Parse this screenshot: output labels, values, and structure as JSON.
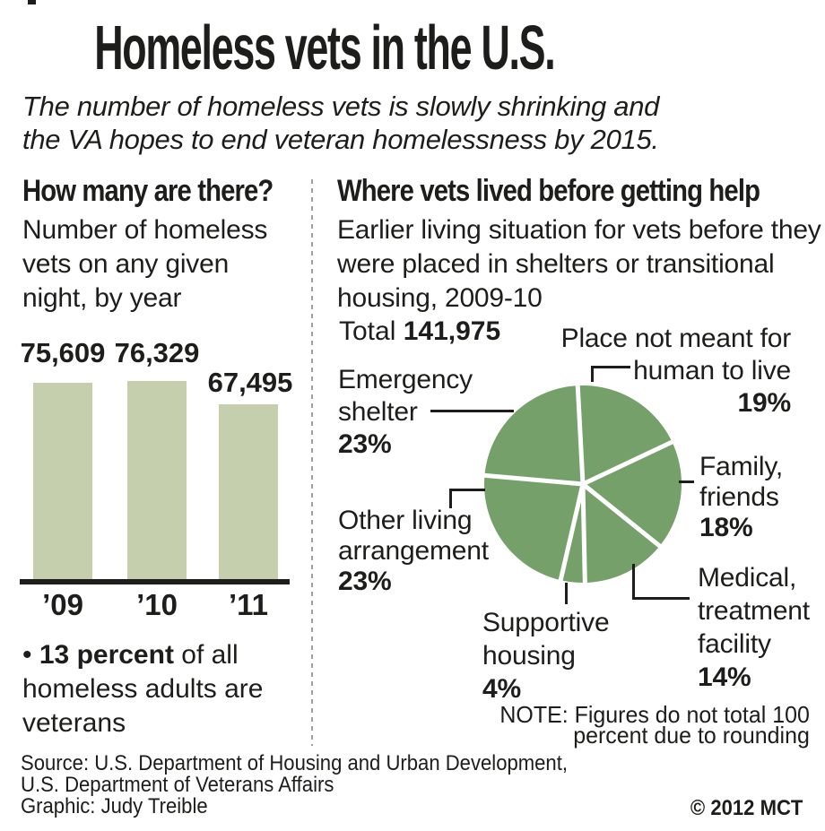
{
  "header": {
    "title": "Homeless vets in the U.S.",
    "subtitle": "The number of homeless vets is slowly shrinking and the VA hopes to end veteran homelessness by 2015."
  },
  "left_section": {
    "heading": "How many are there?",
    "description": "Number of homeless vets on any given night, by year",
    "footnote_bullet": "•",
    "footnote_bold": "13 percent",
    "footnote_rest": " of all homeless adults are veterans"
  },
  "right_section": {
    "heading": "Where vets lived before getting help",
    "description": "Earlier living situation for vets before they were placed in shelters or transitional housing, 2009-10",
    "total_label": "Total",
    "total_value": "141,975",
    "note_line1": "NOTE: Figures do not total 100",
    "note_line2": "percent due to rounding"
  },
  "footer": {
    "source_line1": "Source: U.S. Department of Housing and Urban Development,",
    "source_line2": "U.S. Department of Veterans Affairs",
    "credit": "Graphic: Judy Treible",
    "copyright": "© 2012 MCT"
  },
  "colors": {
    "bar_green": "#c6cfad",
    "pie_green": "#75a06a",
    "text_black": "#1d1d1b"
  },
  "chart_data": [
    {
      "type": "bar",
      "title": "Number of homeless vets on any given night, by year",
      "categories": [
        "’09",
        "’10",
        "’11"
      ],
      "values": [
        75609,
        76329,
        67495
      ],
      "value_labels": [
        "75,609",
        "76,329",
        "67,495"
      ],
      "ylim": [
        0,
        76329
      ],
      "bar_color": "#c6cfad",
      "grid": false,
      "annotation": "13 percent of all homeless adults are veterans"
    },
    {
      "type": "pie",
      "title": "Where vets lived before getting help",
      "total_label": "Total 141,975",
      "total": 141975,
      "color": "#75a06a",
      "start_angle_deg": -3,
      "slices": [
        {
          "label": "Place not meant for human to live",
          "pct": 19,
          "pct_label": "19%"
        },
        {
          "label": "Family, friends",
          "pct": 18,
          "pct_label": "18%"
        },
        {
          "label": "Medical, treatment facility",
          "pct": 14,
          "pct_label": "14%"
        },
        {
          "label": "Supportive housing",
          "pct": 4,
          "pct_label": "4%"
        },
        {
          "label": "Other living arrangement",
          "pct": 23,
          "pct_label": "23%"
        },
        {
          "label": "Emergency shelter",
          "pct": 23,
          "pct_label": "23%"
        }
      ],
      "note": "NOTE: Figures do not total 100 percent due to rounding"
    }
  ]
}
